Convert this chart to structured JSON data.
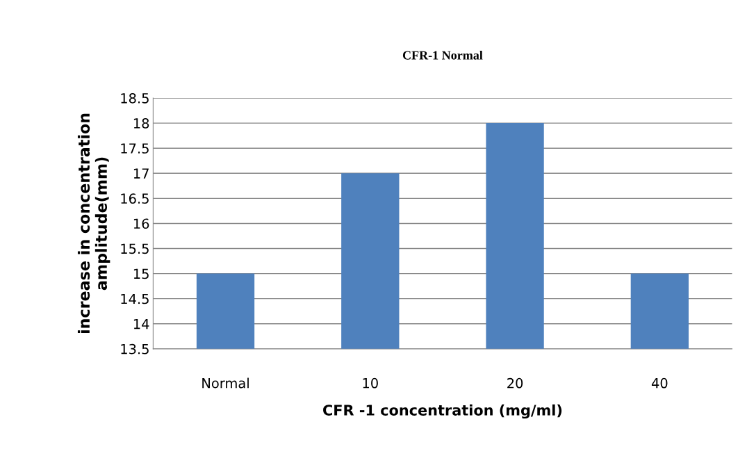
{
  "chart_data": {
    "type": "bar",
    "title": "CFR-1 Normal",
    "xlabel": "CFR -1 concentration (mg/ml)",
    "ylabel": "increase in concentration\namplitude(mm)",
    "categories": [
      "Normal",
      "10",
      "20",
      "40"
    ],
    "values": [
      15,
      17,
      18,
      15
    ],
    "color": "#4f81bd",
    "ylim": [
      13.5,
      18.5
    ],
    "yticks": [
      13.5,
      14,
      14.5,
      15,
      15.5,
      16,
      16.5,
      17,
      17.5,
      18,
      18.5
    ],
    "grid": "y",
    "legend": false
  }
}
